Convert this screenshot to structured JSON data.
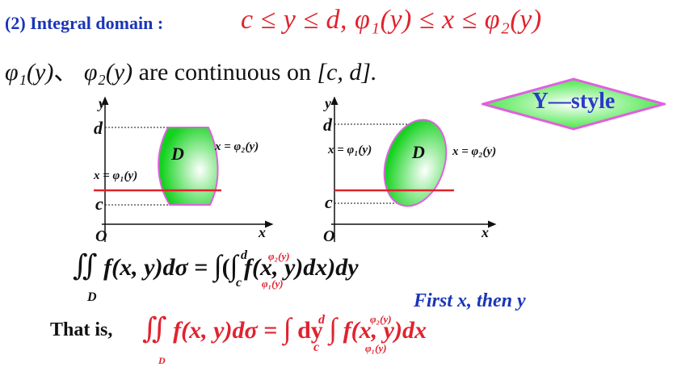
{
  "title": {
    "label": "(2) Integral domain :",
    "math": "c ≤ y ≤ d,  φ₁(y) ≤ x ≤ φ₂(y)"
  },
  "line2": {
    "phi1": "φ₁(y)",
    "sep": "、",
    "phi2": "φ₂(y)",
    "text": " are continuous on ",
    "interval": "[c, d]."
  },
  "badge": {
    "label": "Y—style"
  },
  "diagram_left": {
    "y_axis": "y",
    "x_axis": "x",
    "origin": "O",
    "d_label": "d",
    "c_label": "c",
    "region_label": "D",
    "right_curve_label": "x = φ₂(y)",
    "left_curve_label": "x = φ₁(y)"
  },
  "diagram_right": {
    "y_axis": "y",
    "x_axis": "x",
    "origin": "O",
    "d_label": "d",
    "c_label": "c",
    "region_label": "D",
    "left_curve_label": "x = φ₁(y)",
    "right_curve_label": "x = φ₂(y)"
  },
  "formula1": {
    "integrand": "f(x, y)dσ =",
    "inner": "(",
    "body": "f(x, y)dx)dy",
    "lower_c": "c",
    "upper_d": "d",
    "inner_lower": "φ₁(y)",
    "inner_upper": "φ₂(y)",
    "domain": "D"
  },
  "first_x_then_y": "First x, then y",
  "formula2": {
    "prefix": "That is,",
    "integrand": "f(x, y)dσ =",
    "dy": "dy",
    "body": "f(x, y)dx",
    "lower_c": "c",
    "upper_d": "d",
    "inner_lower": "φ₁(y)",
    "inner_upper": "φ₂(y)",
    "domain": "D"
  },
  "colors": {
    "title_blue": "#1a35b8",
    "red": "#e0232e",
    "region_green": "#14d21e",
    "region_border": "#e060e0",
    "badge_green": "#37e637"
  }
}
